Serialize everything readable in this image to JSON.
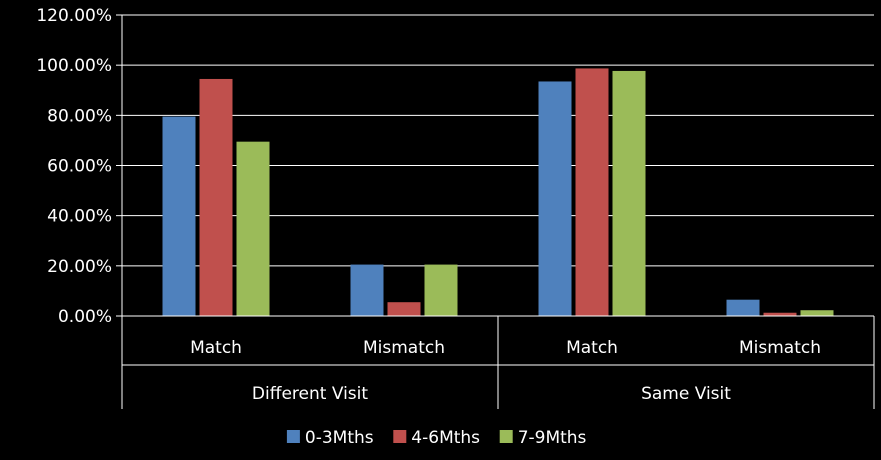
{
  "chart_data": {
    "type": "bar",
    "groups": [
      {
        "label": "Different Visit",
        "categories": [
          "Match",
          "Mismatch"
        ]
      },
      {
        "label": "Same Visit",
        "categories": [
          "Match",
          "Mismatch"
        ]
      }
    ],
    "series": [
      {
        "name": "0-3Mths",
        "color": "#4F81BD",
        "values": [
          79.5,
          20.5,
          93.5,
          6.5
        ]
      },
      {
        "name": "4-6Mths",
        "color": "#C0504D",
        "values": [
          94.5,
          5.5,
          98.7,
          1.3
        ]
      },
      {
        "name": "7-9Mths",
        "color": "#9BBB59",
        "values": [
          69.5,
          20.5,
          97.7,
          2.3
        ]
      }
    ],
    "y_ticks": [
      "0.00%",
      "20.00%",
      "40.00%",
      "60.00%",
      "80.00%",
      "100.00%",
      "120.00%"
    ],
    "ylim": [
      0,
      120
    ],
    "grid": true,
    "legend_position": "bottom",
    "title": "",
    "xlabel": "",
    "ylabel": ""
  }
}
